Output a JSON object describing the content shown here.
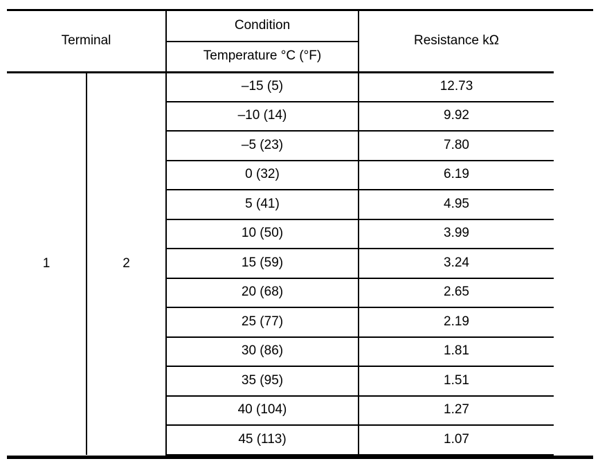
{
  "page": {
    "background": "#ffffff",
    "border_color": "#000000"
  },
  "table": {
    "headers": {
      "terminal": "Terminal",
      "condition": "Condition",
      "temperature": "Temperature °C (°F)",
      "resistance": "Resistance kΩ"
    },
    "terminal_1": "1",
    "terminal_2": "2",
    "rows": [
      {
        "temp": "–15 (5)",
        "res": "12.73"
      },
      {
        "temp": "–10 (14)",
        "res": "9.92"
      },
      {
        "temp": "–5 (23)",
        "res": "7.80"
      },
      {
        "temp": "0 (32)",
        "res": "6.19"
      },
      {
        "temp": "5 (41)",
        "res": "4.95"
      },
      {
        "temp": "10 (50)",
        "res": "3.99"
      },
      {
        "temp": "15 (59)",
        "res": "3.24"
      },
      {
        "temp": "20 (68)",
        "res": "2.65"
      },
      {
        "temp": "25 (77)",
        "res": "2.19"
      },
      {
        "temp": "30 (86)",
        "res": "1.81"
      },
      {
        "temp": "35 (95)",
        "res": "1.51"
      },
      {
        "temp": "40 (104)",
        "res": "1.27"
      },
      {
        "temp": "45 (113)",
        "res": "1.07"
      }
    ]
  }
}
